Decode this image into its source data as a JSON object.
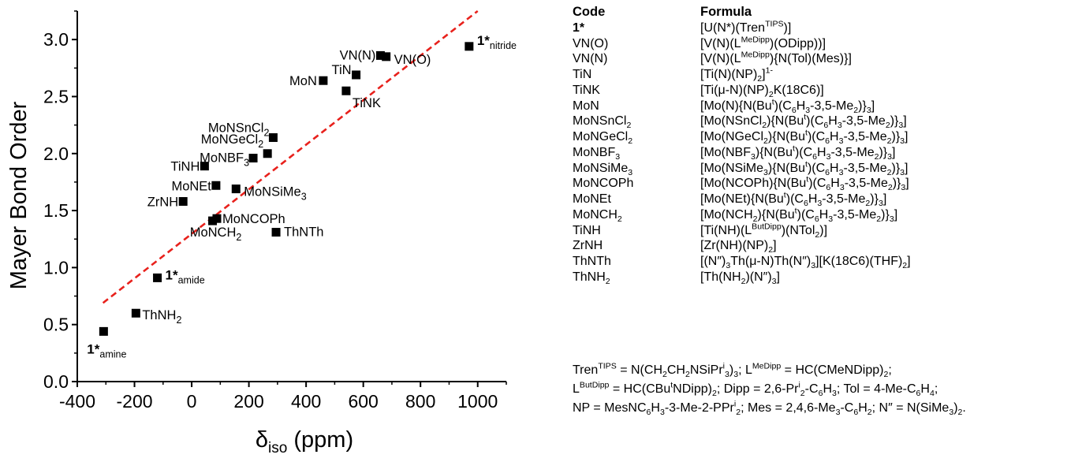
{
  "chart_data": {
    "type": "scatter",
    "xlabel": "δ",
    "xlabel_sub": "iso",
    "xlabel_unit": " (ppm)",
    "ylabel": "Mayer Bond Order",
    "xlim": [
      -400,
      1100
    ],
    "ylim": [
      0.0,
      3.25
    ],
    "xticks": [
      -400,
      -200,
      0,
      200,
      400,
      600,
      800,
      1000
    ],
    "yticks": [
      0.0,
      0.5,
      1.0,
      1.5,
      2.0,
      2.5,
      3.0
    ],
    "xtick_labels": [
      "-400",
      "-200",
      "0",
      "200",
      "400",
      "600",
      "800",
      "1000"
    ],
    "ytick_labels": [
      "0.0",
      "0.5",
      "1.0",
      "1.5",
      "2.0",
      "2.5",
      "3.0"
    ],
    "grid": false,
    "trendline": {
      "x": [
        -310,
        1000
      ],
      "y": [
        0.69,
        3.25
      ],
      "style": "dashed",
      "color": "#e8211c"
    },
    "points": [
      {
        "x": 970,
        "y": 2.94,
        "label": "1*",
        "sub": "nitride",
        "bold": true
      },
      {
        "x": 680,
        "y": 2.85,
        "label": "VN(O)",
        "sub": ""
      },
      {
        "x": 660,
        "y": 2.86,
        "label": "VN(N)",
        "sub": ""
      },
      {
        "x": 575,
        "y": 2.69,
        "label": "TiN",
        "sub": ""
      },
      {
        "x": 540,
        "y": 2.55,
        "label": "TiNK",
        "sub": ""
      },
      {
        "x": 460,
        "y": 2.64,
        "label": "MoN",
        "sub": ""
      },
      {
        "x": 285,
        "y": 2.14,
        "label": "MoNSnCl",
        "sub": "2"
      },
      {
        "x": 265,
        "y": 2.0,
        "label": "MoNGeCl",
        "sub": "2"
      },
      {
        "x": 215,
        "y": 1.96,
        "label": "MoNBF",
        "sub": "3"
      },
      {
        "x": 45,
        "y": 1.89,
        "label": "TiNH",
        "sub": ""
      },
      {
        "x": 85,
        "y": 1.72,
        "label": "MoNEt",
        "sub": ""
      },
      {
        "x": 155,
        "y": 1.69,
        "label": "MoNSiMe",
        "sub": "3"
      },
      {
        "x": -30,
        "y": 1.58,
        "label": "ZrNH",
        "sub": ""
      },
      {
        "x": 88,
        "y": 1.43,
        "label": "MoNCOPh",
        "sub": ""
      },
      {
        "x": 73,
        "y": 1.41,
        "label": "MoNCH",
        "sub": "2"
      },
      {
        "x": 295,
        "y": 1.31,
        "label": "ThNTh",
        "sub": ""
      },
      {
        "x": -120,
        "y": 0.91,
        "label": "1*",
        "sub": "amide",
        "bold": true
      },
      {
        "x": -195,
        "y": 0.6,
        "label": "ThNH",
        "sub": "2"
      },
      {
        "x": -308,
        "y": 0.44,
        "label": "1*",
        "sub": "amine",
        "bold": true
      }
    ]
  },
  "table": {
    "header_code": "Code",
    "header_formula": "Formula"
  },
  "colors": {
    "trendline": "#e8211c",
    "marker": "#000000"
  }
}
